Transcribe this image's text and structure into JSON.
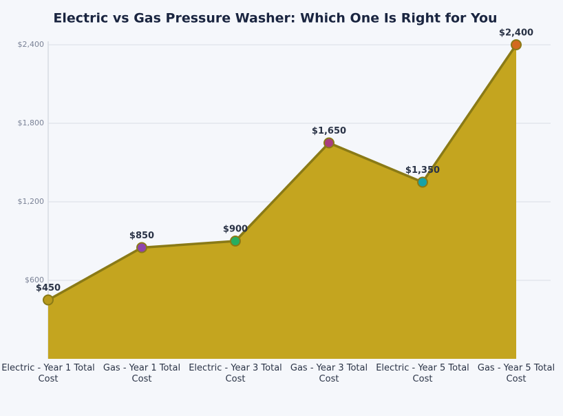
{
  "chart_data": {
    "type": "area",
    "title": "Electric vs Gas Pressure Washer: Which One Is Right for You",
    "categories": [
      "Electric - Year 1 Total Cost",
      "Gas - Year 1 Total Cost",
      "Electric - Year 3 Total Cost",
      "Gas - Year 3 Total Cost",
      "Electric - Year 5 Total Cost",
      "Gas - Year 5 Total Cost"
    ],
    "values": [
      450,
      850,
      900,
      1650,
      1350,
      2400
    ],
    "value_labels": [
      "$450",
      "$850",
      "$900",
      "$1,650",
      "$1,350",
      "$2,400"
    ],
    "color": "#c4a51f",
    "line_color": "#8a7a16",
    "point_colors": [
      "#b89a1c",
      "#8e44ad",
      "#27ae60",
      "#a83e7e",
      "#17a2a8",
      "#d2691e"
    ],
    "ylim": [
      0,
      2400
    ],
    "yticks": [
      {
        "value": 600,
        "label": "$600"
      },
      {
        "value": 1200,
        "label": "$1,200"
      },
      {
        "value": 1800,
        "label": "$1,800"
      },
      {
        "value": 2400,
        "label": "$2,400"
      }
    ],
    "grid": true
  }
}
